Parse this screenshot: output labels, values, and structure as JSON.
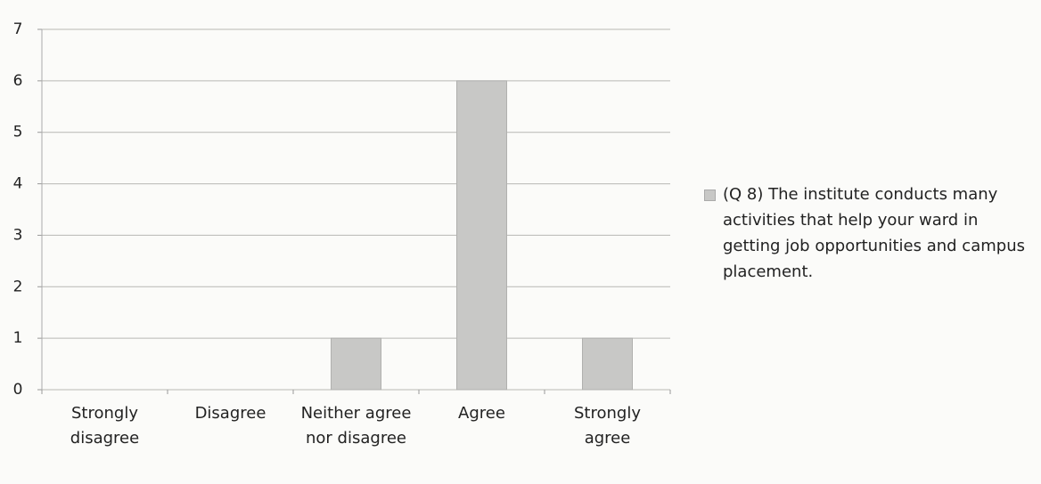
{
  "chart_data": {
    "type": "bar",
    "categories": [
      "Strongly disagree",
      "Disagree",
      "Neither agree nor disagree",
      "Agree",
      "Strongly agree"
    ],
    "series": [
      {
        "name": "(Q 8) The institute conducts many activities that help your ward in getting job opportunities and campus placement.",
        "color": "#c8c8c6",
        "values": [
          0,
          0,
          1,
          6,
          1
        ]
      }
    ],
    "ylim": [
      0,
      7
    ],
    "yticks": [
      0,
      1,
      2,
      3,
      4,
      5,
      6,
      7
    ],
    "grid": true,
    "legend": "right"
  }
}
